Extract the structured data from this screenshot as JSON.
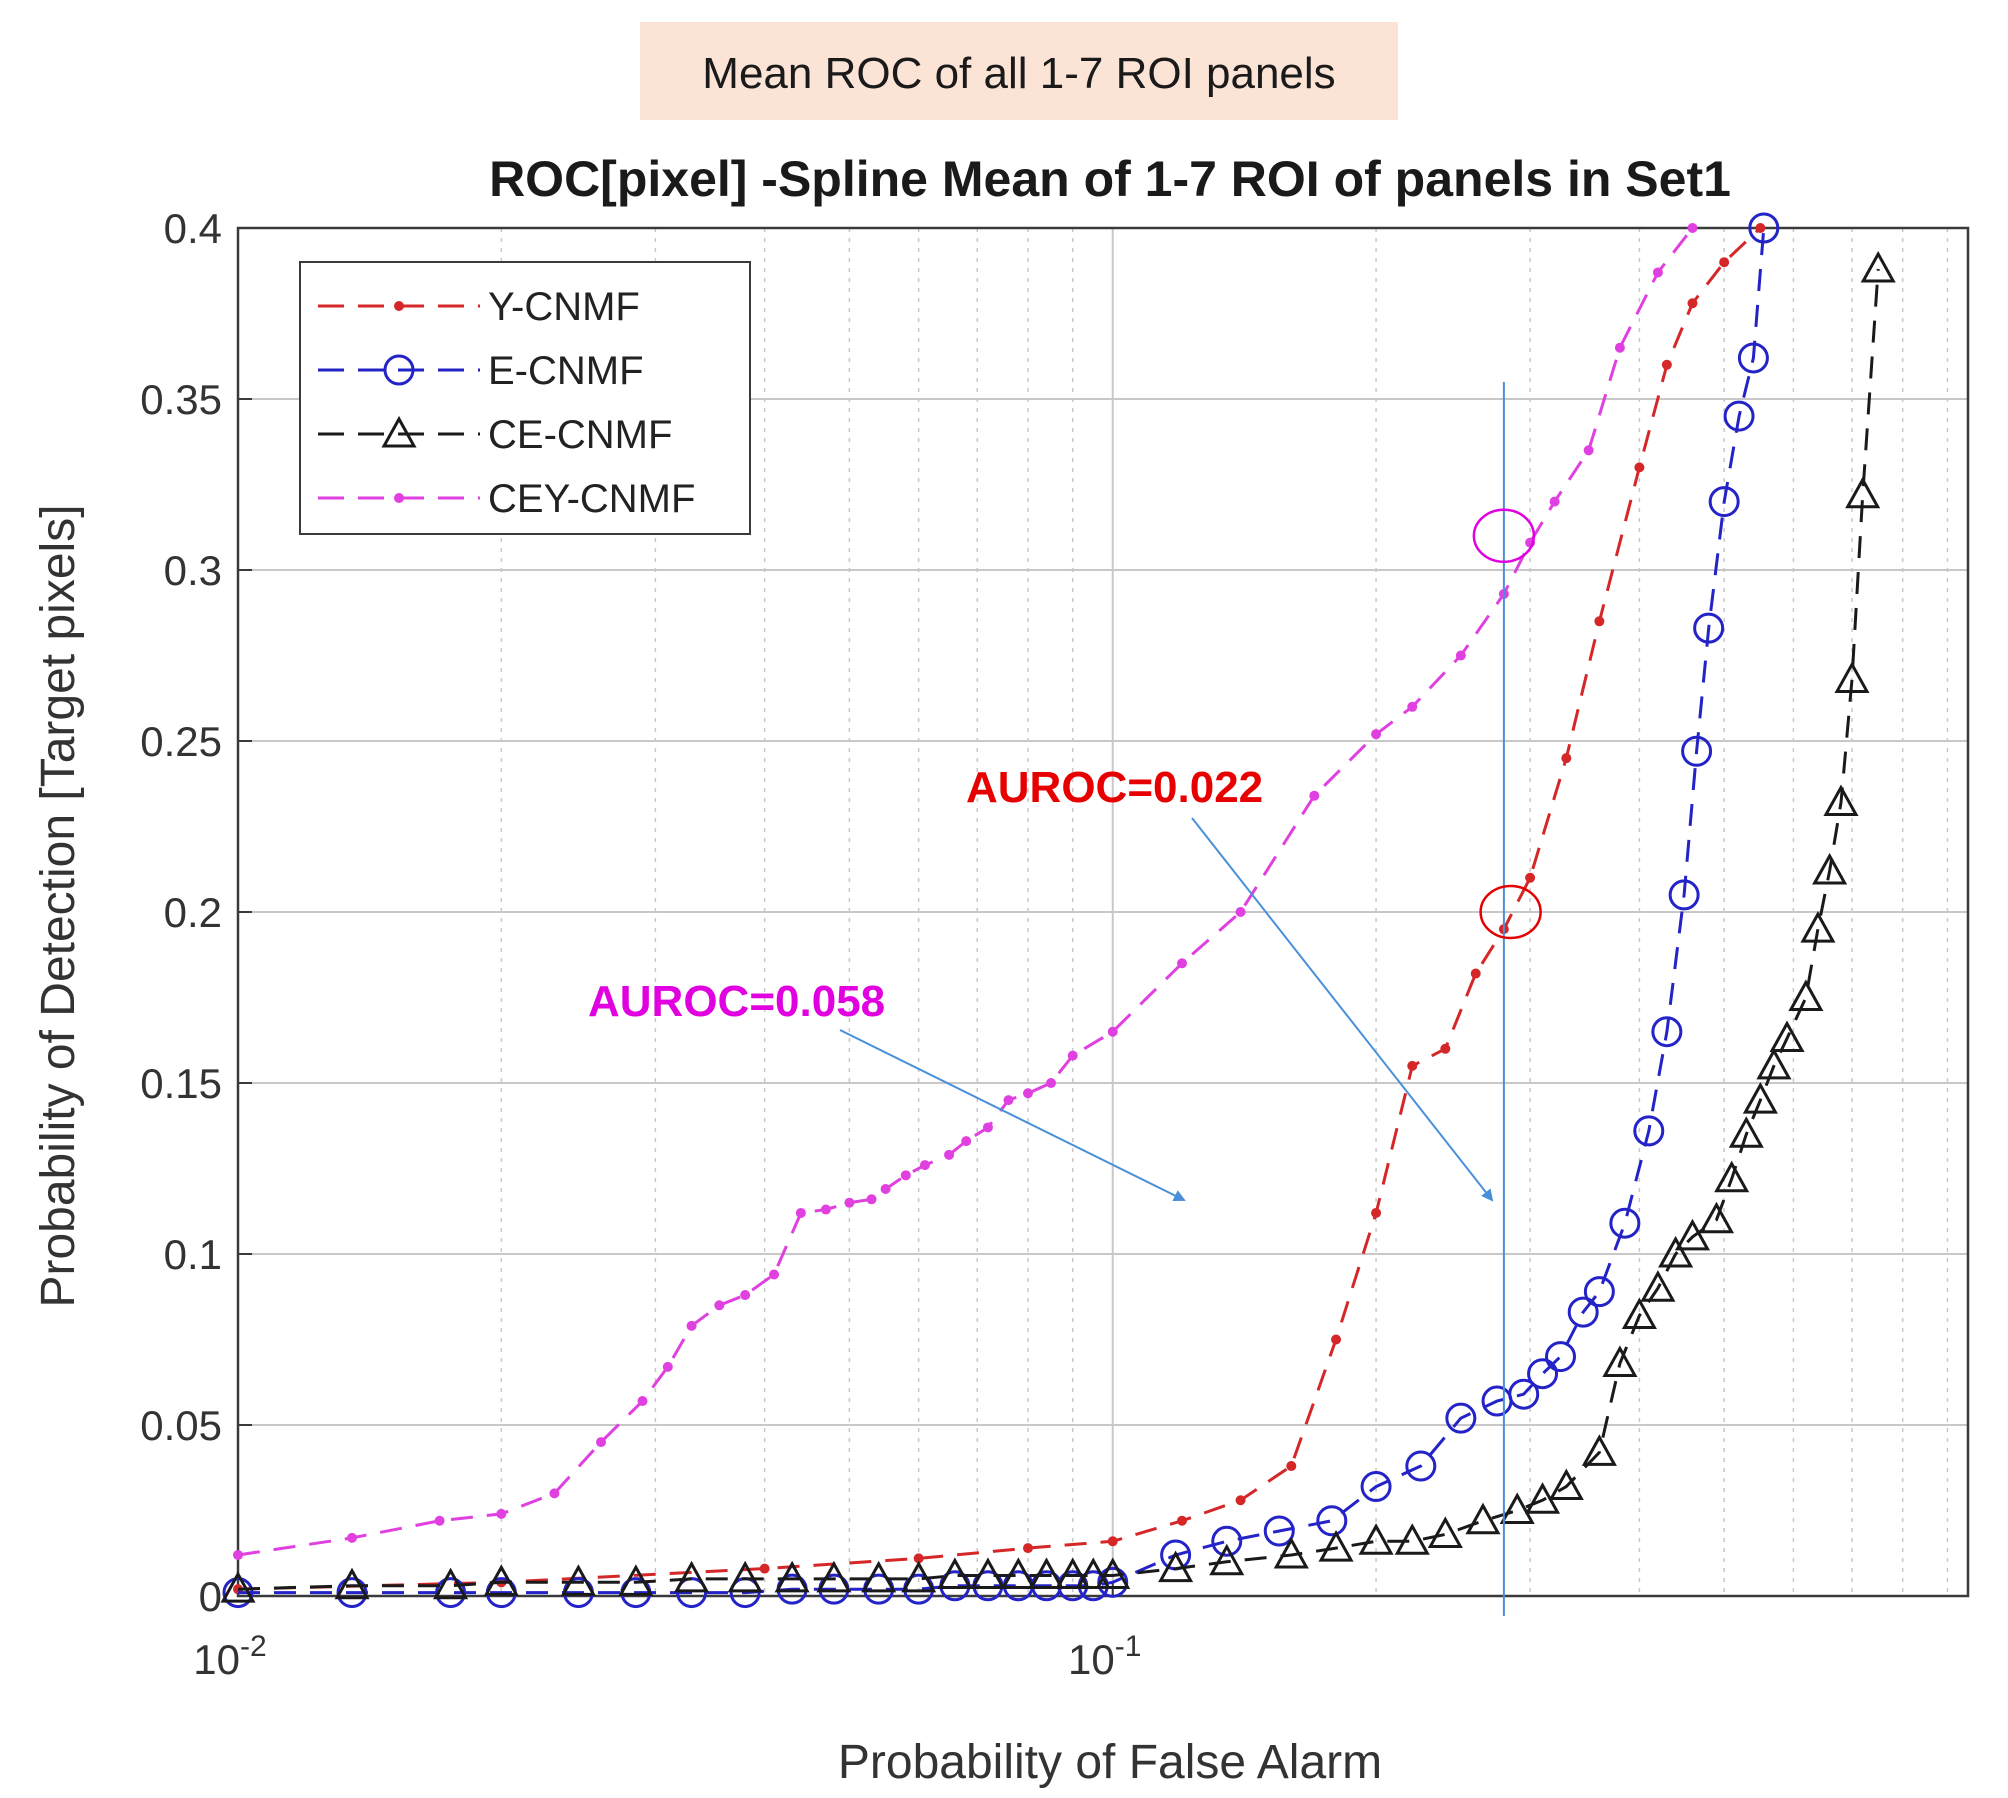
{
  "banner": {
    "text": "Mean ROC of all 1-7 ROI panels",
    "color": "#fbe3d6"
  },
  "chart_data": {
    "type": "line",
    "title": "ROC[pixel] -Spline Mean of 1-7 ROI of panels in Set1",
    "xlabel": "Probability of False Alarm",
    "ylabel": "Probability of Detection [Target pixels]",
    "xscale": "log",
    "xlim": [
      0.01,
      0.95
    ],
    "ylim": [
      0,
      0.4
    ],
    "x_ticks": [
      {
        "value": 0.01,
        "base": "10",
        "exp": "-2"
      },
      {
        "value": 0.1,
        "base": "10",
        "exp": "-1"
      }
    ],
    "y_ticks": [
      {
        "value": 0,
        "label": "0"
      },
      {
        "value": 0.05,
        "label": "0.05"
      },
      {
        "value": 0.1,
        "label": "0.1"
      },
      {
        "value": 0.15,
        "label": "0.15"
      },
      {
        "value": 0.2,
        "label": "0.2"
      },
      {
        "value": 0.25,
        "label": "0.25"
      },
      {
        "value": 0.3,
        "label": "0.3"
      },
      {
        "value": 0.35,
        "label": "0.35"
      },
      {
        "value": 0.4,
        "label": "0.4"
      }
    ],
    "grid": true,
    "legend_position": "top-left",
    "series": [
      {
        "name": "Y-CNMF",
        "color": "#d62728",
        "marker": "dot",
        "x": [
          0.01,
          0.02,
          0.04,
          0.06,
          0.08,
          0.1,
          0.12,
          0.14,
          0.16,
          0.18,
          0.2,
          0.22,
          0.24,
          0.26,
          0.28,
          0.3,
          0.33,
          0.36,
          0.4,
          0.43,
          0.46,
          0.5,
          0.55
        ],
        "y": [
          0.002,
          0.004,
          0.008,
          0.011,
          0.014,
          0.016,
          0.022,
          0.028,
          0.038,
          0.075,
          0.112,
          0.155,
          0.16,
          0.182,
          0.195,
          0.21,
          0.245,
          0.285,
          0.33,
          0.36,
          0.378,
          0.39,
          0.4
        ]
      },
      {
        "name": "E-CNMF",
        "color": "#2323c8",
        "marker": "circle",
        "x": [
          0.01,
          0.0135,
          0.0175,
          0.02,
          0.0245,
          0.0285,
          0.033,
          0.038,
          0.043,
          0.048,
          0.054,
          0.06,
          0.066,
          0.072,
          0.078,
          0.084,
          0.09,
          0.095,
          0.1,
          0.118,
          0.135,
          0.155,
          0.178,
          0.2,
          0.225,
          0.25,
          0.275,
          0.295,
          0.31,
          0.325,
          0.345,
          0.36,
          0.385,
          0.41,
          0.43,
          0.45,
          0.465,
          0.48,
          0.5,
          0.52,
          0.54,
          0.555
        ],
        "y": [
          0.001,
          0.001,
          0.001,
          0.001,
          0.001,
          0.001,
          0.001,
          0.001,
          0.002,
          0.002,
          0.002,
          0.002,
          0.003,
          0.003,
          0.003,
          0.003,
          0.003,
          0.003,
          0.004,
          0.012,
          0.016,
          0.019,
          0.022,
          0.032,
          0.038,
          0.052,
          0.057,
          0.059,
          0.065,
          0.07,
          0.083,
          0.089,
          0.109,
          0.136,
          0.165,
          0.205,
          0.247,
          0.283,
          0.32,
          0.345,
          0.362,
          0.4
        ]
      },
      {
        "name": "CE-CNMF",
        "color": "#1a1a1a",
        "marker": "triangle",
        "x": [
          0.01,
          0.0135,
          0.0175,
          0.02,
          0.0245,
          0.0285,
          0.033,
          0.038,
          0.043,
          0.048,
          0.054,
          0.06,
          0.066,
          0.072,
          0.078,
          0.084,
          0.09,
          0.095,
          0.1,
          0.118,
          0.135,
          0.16,
          0.18,
          0.2,
          0.22,
          0.24,
          0.265,
          0.29,
          0.31,
          0.33,
          0.36,
          0.38,
          0.4,
          0.42,
          0.44,
          0.46,
          0.49,
          0.51,
          0.53,
          0.55,
          0.57,
          0.59,
          0.62,
          0.64,
          0.66,
          0.68,
          0.7,
          0.72,
          0.75
        ],
        "y": [
          0.002,
          0.003,
          0.003,
          0.004,
          0.004,
          0.004,
          0.005,
          0.005,
          0.005,
          0.005,
          0.005,
          0.005,
          0.006,
          0.006,
          0.006,
          0.006,
          0.006,
          0.006,
          0.006,
          0.008,
          0.01,
          0.012,
          0.014,
          0.016,
          0.016,
          0.018,
          0.022,
          0.025,
          0.028,
          0.032,
          0.042,
          0.068,
          0.082,
          0.09,
          0.1,
          0.105,
          0.11,
          0.122,
          0.135,
          0.145,
          0.155,
          0.163,
          0.175,
          0.195,
          0.212,
          0.232,
          0.268,
          0.322,
          0.388
        ]
      },
      {
        "name": "CEY-CNMF",
        "color": "#e040e0",
        "marker": "dot",
        "x": [
          0.01,
          0.0135,
          0.017,
          0.02,
          0.023,
          0.026,
          0.029,
          0.031,
          0.033,
          0.0355,
          0.038,
          0.041,
          0.044,
          0.047,
          0.05,
          0.053,
          0.055,
          0.058,
          0.061,
          0.065,
          0.068,
          0.072,
          0.076,
          0.08,
          0.085,
          0.09,
          0.1,
          0.12,
          0.14,
          0.17,
          0.2,
          0.22,
          0.25,
          0.28,
          0.3,
          0.32,
          0.35,
          0.38,
          0.42,
          0.46
        ],
        "y": [
          0.012,
          0.017,
          0.022,
          0.024,
          0.03,
          0.045,
          0.057,
          0.067,
          0.079,
          0.085,
          0.088,
          0.094,
          0.112,
          0.113,
          0.115,
          0.116,
          0.119,
          0.123,
          0.126,
          0.129,
          0.133,
          0.137,
          0.145,
          0.147,
          0.15,
          0.158,
          0.165,
          0.185,
          0.2,
          0.234,
          0.252,
          0.26,
          0.275,
          0.293,
          0.308,
          0.32,
          0.335,
          0.365,
          0.387,
          0.4
        ]
      }
    ],
    "annotations": [
      {
        "text": "AUROC=0.058",
        "color": "#e000e0"
      },
      {
        "text": "AUROC=0.022",
        "color": "#e60000"
      }
    ],
    "reference_line": {
      "x": 0.28,
      "color": "#4a90d9"
    },
    "highlights": [
      {
        "series": "CEY-CNMF",
        "x": 0.28,
        "y": 0.31,
        "color": "#e000e0"
      },
      {
        "series": "Y-CNMF",
        "x": 0.285,
        "y": 0.2,
        "color": "#e60000"
      }
    ]
  }
}
